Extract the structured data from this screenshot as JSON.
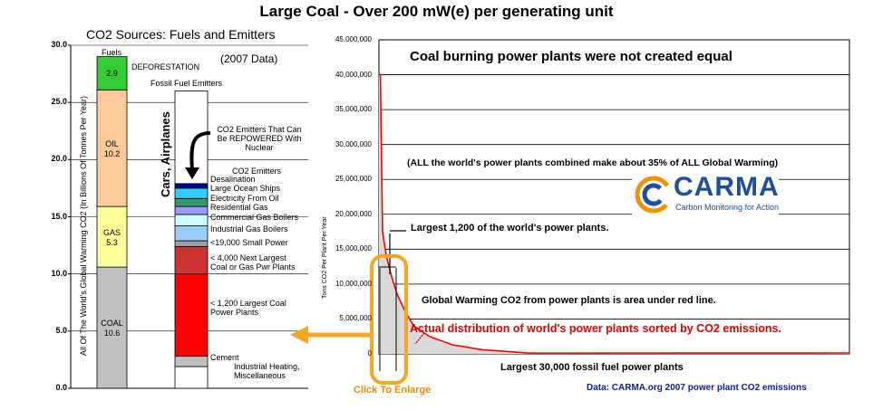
{
  "main_title": "Large Coal - Over 200 mW(e) per generating unit",
  "left_chart": {
    "title": "CO2 Sources: Fuels and Emitters",
    "y_label": "All Of The World's Global Warming CO2 (In Billions Of Tonnes Per Year)",
    "y_ticks": [
      "0.0",
      "5.0",
      "10.0",
      "15.0",
      "20.0",
      "25.0",
      "30.0"
    ],
    "fuels_header": "Fuels",
    "deforestation_label": "DEFORESTATION",
    "data_year": "(2007 Data)",
    "emitters_header": "Fossil Fuel Emitters",
    "cars_label": "Cars, Airplanes",
    "repower_note": "CO2 Emitters That Can Be REPOWERED With Nuclear",
    "emitters_note": "CO2 Emitters",
    "fuel_segments": [
      {
        "name": "COAL",
        "value_label": "10.6",
        "value": 10.6,
        "color": "#c0c0c0"
      },
      {
        "name": "GAS",
        "value_label": "5.3",
        "value": 5.3,
        "color": "#ffff99"
      },
      {
        "name": "OIL",
        "value_label": "10.2",
        "value": 10.2,
        "color": "#fcc99b"
      },
      {
        "name": "",
        "value_label": "2.9",
        "value": 2.9,
        "color": "#33cc33"
      }
    ],
    "emitter_segments": [
      {
        "label": "Industrial Heating, Miscellaneous",
        "from": 0.0,
        "to": 1.9,
        "color": "#ffffff"
      },
      {
        "label": "Cement",
        "from": 1.9,
        "to": 2.8,
        "color": "#c0c0c0"
      },
      {
        "label": "< 1,200 Largest Coal Power Plants",
        "from": 2.8,
        "to": 10.0,
        "color": "#ff0000"
      },
      {
        "label": "< 4,000 Next Largest Coal or Gas Pwr Plants",
        "from": 10.0,
        "to": 12.4,
        "color": "#cc3333"
      },
      {
        "label": "<19,000 Small Power",
        "from": 12.4,
        "to": 12.9,
        "color": "#a0a0a0"
      },
      {
        "label": "Industrial Gas Boilers",
        "from": 12.9,
        "to": 14.2,
        "color": "#99ccff"
      },
      {
        "label": "Commercial Gas Boilers",
        "from": 14.2,
        "to": 15.2,
        "color": "#ccffff"
      },
      {
        "label": "Residential Gas",
        "from": 15.2,
        "to": 15.9,
        "color": "#9999ff"
      },
      {
        "label": "Electricity From Oil",
        "from": 15.9,
        "to": 16.6,
        "color": "#339966"
      },
      {
        "label": "Large Ocean Ships",
        "from": 16.6,
        "to": 17.5,
        "color": "#33ccff"
      },
      {
        "label": "Desalination",
        "from": 17.5,
        "to": 17.9,
        "color": "#000099"
      },
      {
        "label": "",
        "from": 17.9,
        "to": 26.0,
        "color": "#ffffff"
      }
    ]
  },
  "right_chart": {
    "headline": "Coal burning power plants were not created equal",
    "y_label": "Tons CO2 Per Plant Per Year",
    "y_ticks": [
      "0",
      "5,000,000",
      "10,000,000",
      "15,000,000",
      "20,000,000",
      "25,000,000",
      "30,000,000",
      "35,000,000",
      "40,000,000",
      "45,000,000"
    ],
    "x_label": "Largest 30,000 fossil fuel power plants",
    "note_global": "(ALL the world's power plants combined make about 35% of ALL Global Warming)",
    "note_largest": "Largest 1,200 of the world's power plants.",
    "note_area": "Global Warming CO2 from power plants is area under red line.",
    "note_distribution": "Actual distribution of world's power plants sorted by CO2 emissions.",
    "logo_name": "CARMA",
    "logo_sub": "Carbon Monitoring for Action",
    "enlarge_label": "Click To Enlarge",
    "source": "Data: CARMA.org 2007 power plant CO2 emissions",
    "curve_color": "#ff0000",
    "highlight_color": "#f5a623"
  },
  "chart_data": [
    {
      "type": "bar",
      "title": "CO2 Sources: Fuels and Emitters",
      "ylabel": "All Of The World's Global Warming CO2 (In Billions Of Tonnes Per Year)",
      "ylim": [
        0,
        30
      ],
      "categories": [
        "Fuels",
        "Fossil Fuel Emitters"
      ],
      "series": [
        {
          "name": "COAL",
          "values": [
            10.6,
            null
          ]
        },
        {
          "name": "GAS",
          "values": [
            5.3,
            null
          ]
        },
        {
          "name": "OIL",
          "values": [
            10.2,
            null
          ]
        },
        {
          "name": "DEFORESTATION",
          "values": [
            2.9,
            null
          ]
        }
      ]
    },
    {
      "type": "area",
      "title": "Coal burning power plants were not created equal",
      "xlabel": "Largest 30,000 fossil fuel power plants",
      "ylabel": "Tons CO2 Per Plant Per Year",
      "ylim": [
        0,
        45000000
      ],
      "x": [
        1,
        20,
        100,
        300,
        600,
        1200,
        2000,
        4000,
        8000,
        15000,
        30000
      ],
      "y": [
        40000000,
        17500000,
        14000000,
        11000000,
        8500000,
        6000000,
        4000000,
        2500000,
        1300000,
        600000,
        100000
      ]
    }
  ]
}
